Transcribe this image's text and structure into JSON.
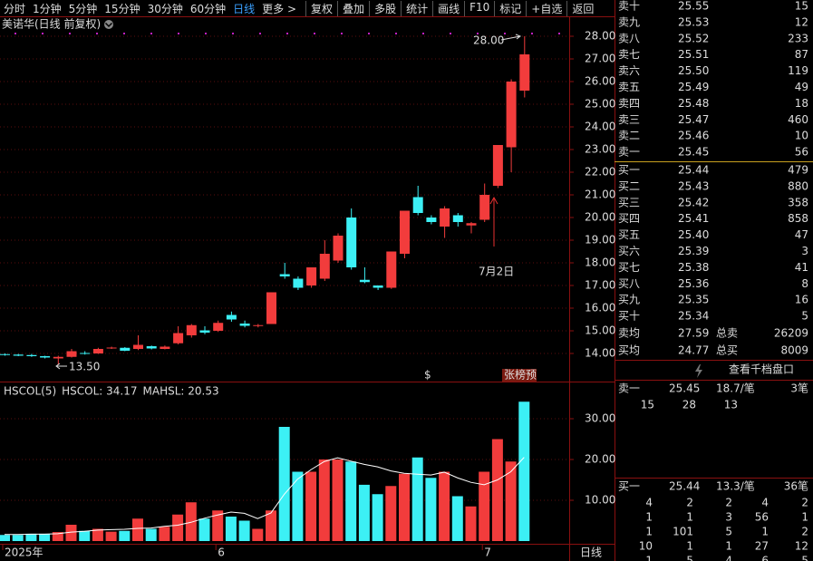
{
  "toolbar": {
    "periods": [
      "分时",
      "1分钟",
      "5分钟",
      "15分钟",
      "30分钟",
      "60分钟",
      "日线",
      "更多 >"
    ],
    "tools": [
      "复权",
      "叠加",
      "多股",
      "统计",
      "画线",
      "F10",
      "标记",
      "+自选",
      "返回"
    ]
  },
  "chart_data": [
    {
      "type": "candlestick",
      "title": "美诺华(日线 前复权)",
      "open": [
        13.97,
        13.95,
        13.93,
        13.88,
        13.78,
        13.85,
        14.02,
        14.0,
        14.22,
        14.25,
        14.2,
        14.32,
        14.2,
        14.45,
        14.8,
        15.02,
        15.0,
        15.7,
        15.32,
        15.22,
        15.3,
        17.5,
        17.3,
        17.0,
        17.3,
        18.1,
        20.0,
        17.25,
        17.0,
        16.9,
        18.4,
        20.9,
        20.0,
        19.6,
        20.1,
        19.65,
        19.9,
        21.4,
        23.1,
        25.6
      ],
      "close": [
        13.93,
        13.9,
        13.88,
        13.82,
        13.85,
        14.1,
        13.98,
        14.2,
        14.26,
        14.12,
        14.38,
        14.22,
        14.3,
        14.9,
        15.25,
        14.92,
        15.35,
        15.5,
        15.22,
        15.25,
        16.7,
        17.4,
        16.9,
        17.8,
        18.4,
        19.2,
        17.8,
        17.15,
        16.9,
        18.5,
        20.3,
        20.2,
        19.8,
        20.4,
        19.8,
        19.75,
        21.0,
        23.2,
        26.0,
        27.2
      ],
      "high": [
        14.0,
        13.98,
        13.98,
        13.9,
        13.9,
        14.2,
        14.1,
        14.25,
        14.3,
        14.28,
        14.8,
        14.35,
        14.35,
        15.2,
        15.3,
        15.2,
        15.45,
        15.85,
        15.45,
        15.3,
        16.7,
        18.0,
        17.4,
        17.8,
        19.0,
        19.3,
        20.4,
        17.8,
        17.0,
        18.5,
        20.3,
        21.4,
        20.1,
        20.5,
        20.2,
        19.8,
        21.5,
        23.2,
        26.1,
        28.0
      ],
      "low": [
        13.9,
        13.88,
        13.85,
        13.78,
        13.5,
        13.82,
        13.95,
        13.98,
        14.2,
        14.1,
        14.15,
        14.18,
        14.18,
        14.4,
        14.7,
        14.85,
        14.95,
        15.4,
        15.15,
        15.15,
        15.3,
        17.3,
        16.8,
        16.9,
        17.2,
        18.0,
        17.7,
        17.1,
        16.8,
        16.85,
        18.2,
        20.1,
        19.7,
        19.1,
        19.6,
        19.3,
        19.8,
        21.3,
        22.0,
        25.3
      ],
      "up_color": "#f23c3c",
      "down_color": "#3cf0f5",
      "ylim": [
        12.8,
        28.88
      ],
      "yticks": [
        {
          "value": 14,
          "label": "14.00"
        },
        {
          "value": 15,
          "label": "15.00"
        },
        {
          "value": 16,
          "label": "16.00"
        },
        {
          "value": 17,
          "label": "17.00"
        },
        {
          "value": 18,
          "label": "18.00"
        },
        {
          "value": 19,
          "label": "19.00"
        },
        {
          "value": 20,
          "label": "20.00"
        },
        {
          "value": 21,
          "label": "21.00"
        },
        {
          "value": 22,
          "label": "22.00"
        },
        {
          "value": 23,
          "label": "23.00"
        },
        {
          "value": 24,
          "label": "24.00"
        },
        {
          "value": 25,
          "label": "25.00"
        },
        {
          "value": 26,
          "label": "26.00"
        },
        {
          "value": 27,
          "label": "27.00"
        },
        {
          "value": 28,
          "label": "28.00"
        }
      ],
      "annotations": [
        "28.00",
        "13.50",
        "7月2日",
        "$",
        "张榜预"
      ],
      "grid": true
    },
    {
      "type": "bar",
      "legend": [
        "HSCOL(5)",
        "HSCOL: 34.17",
        "MAHSL: 20.53"
      ],
      "categories": [
        "2025年",
        null,
        null,
        null,
        null,
        null,
        null,
        null,
        null,
        null,
        null,
        null,
        null,
        null,
        null,
        null,
        "6",
        null,
        null,
        null,
        null,
        null,
        null,
        null,
        null,
        null,
        null,
        null,
        null,
        null,
        null,
        null,
        null,
        null,
        null,
        null,
        "7",
        null,
        null,
        null
      ],
      "series": [
        {
          "values": [
            1.5,
            1.5,
            1.8,
            1.8,
            2.2,
            4,
            2.5,
            3,
            2.3,
            2.5,
            5.5,
            3,
            3.5,
            6.5,
            9.5,
            5.5,
            7.5,
            6,
            5,
            3,
            7.5,
            28,
            17,
            17,
            20,
            20,
            19.5,
            13.8,
            11.5,
            13.5,
            16.5,
            20.5,
            15.5,
            17,
            11,
            8.5,
            17,
            25,
            19.5,
            34.17
          ],
          "colors": [
            "#3cf0f5",
            "#3cf0f5",
            "#3cf0f5",
            "#3cf0f5",
            "#f23c3c",
            "#f23c3c",
            "#3cf0f5",
            "#f23c3c",
            "#f23c3c",
            "#3cf0f5",
            "#f23c3c",
            "#3cf0f5",
            "#f23c3c",
            "#f23c3c",
            "#f23c3c",
            "#3cf0f5",
            "#f23c3c",
            "#3cf0f5",
            "#3cf0f5",
            "#f23c3c",
            "#f23c3c",
            "#3cf0f5",
            "#3cf0f5",
            "#f23c3c",
            "#f23c3c",
            "#f23c3c",
            "#3cf0f5",
            "#3cf0f5",
            "#3cf0f5",
            "#f23c3c",
            "#f23c3c",
            "#3cf0f5",
            "#3cf0f5",
            "#f23c3c",
            "#3cf0f5",
            "#f23c3c",
            "#f23c3c",
            "#f23c3c",
            "#f23c3c",
            "#3cf0f5"
          ]
        },
        {
          "type": "line",
          "color": "#ffffff",
          "values": [
            1.6,
            1.6,
            1.7,
            1.7,
            1.8,
            2.2,
            2.4,
            2.7,
            2.8,
            2.9,
            3.1,
            3.2,
            3.6,
            3.9,
            4.6,
            5.6,
            6.4,
            7.1,
            6.8,
            5.5,
            6.9,
            11.5,
            15.2,
            17.5,
            19.5,
            20.4,
            19.6,
            18.8,
            18.2,
            17.2,
            16.6,
            16.4,
            16.2,
            16.9,
            15.5,
            14.4,
            13.8,
            15.0,
            17.0,
            20.53
          ]
        }
      ],
      "ylim": [
        0,
        38
      ],
      "yticks": [
        {
          "value": 10,
          "label": "10.00"
        },
        {
          "value": 20,
          "label": "20.00"
        },
        {
          "value": 30,
          "label": "30.00"
        }
      ],
      "period_label": "日线",
      "grid": true
    }
  ],
  "order_book": {
    "asks": [
      {
        "label": "卖十",
        "price": "25.55",
        "volume": "15",
        "color": "#f23c3c"
      },
      {
        "label": "卖九",
        "price": "25.53",
        "volume": "12",
        "color": "#f23c3c"
      },
      {
        "label": "卖八",
        "price": "25.52",
        "volume": "233",
        "color": "#f23c3c"
      },
      {
        "label": "卖七",
        "price": "25.51",
        "volume": "87",
        "color": "#f23c3c"
      },
      {
        "label": "卖六",
        "price": "25.50",
        "volume": "119",
        "color": "#e8e8e8"
      },
      {
        "label": "卖五",
        "price": "25.49",
        "volume": "49",
        "color": "#2fd62f"
      },
      {
        "label": "卖四",
        "price": "25.48",
        "volume": "18",
        "color": "#2fd62f"
      },
      {
        "label": "卖三",
        "price": "25.47",
        "volume": "460",
        "color": "#2fd62f"
      },
      {
        "label": "卖二",
        "price": "25.46",
        "volume": "10",
        "color": "#2fd62f"
      },
      {
        "label": "卖一",
        "price": "25.45",
        "volume": "56",
        "color": "#2fd62f"
      }
    ],
    "bids": [
      {
        "label": "买一",
        "price": "25.44",
        "volume": "479",
        "color": "#2fd62f"
      },
      {
        "label": "买二",
        "price": "25.43",
        "volume": "880",
        "color": "#2fd62f"
      },
      {
        "label": "买三",
        "price": "25.42",
        "volume": "358",
        "color": "#2fd62f"
      },
      {
        "label": "买四",
        "price": "25.41",
        "volume": "858",
        "color": "#2fd62f"
      },
      {
        "label": "买五",
        "price": "25.40",
        "volume": "47",
        "color": "#2fd62f"
      },
      {
        "label": "买六",
        "price": "25.39",
        "volume": "3",
        "color": "#2fd62f"
      },
      {
        "label": "买七",
        "price": "25.38",
        "volume": "41",
        "color": "#2fd62f"
      },
      {
        "label": "买八",
        "price": "25.36",
        "volume": "8",
        "color": "#2fd62f"
      },
      {
        "label": "买九",
        "price": "25.35",
        "volume": "16",
        "color": "#2fd62f"
      },
      {
        "label": "买十",
        "price": "25.34",
        "volume": "5",
        "color": "#2fd62f"
      }
    ],
    "summary": [
      {
        "label": "卖均",
        "price": "27.59",
        "color": "#f23c3c",
        "total_label": "总卖",
        "total": "26209"
      },
      {
        "label": "买均",
        "price": "24.77",
        "color": "#2fd62f",
        "total_label": "总买",
        "total": "8009"
      }
    ],
    "button": "查看千档盘口",
    "sell1": {
      "label": "卖一",
      "price": "25.45",
      "avg": "18.7/笔",
      "count": "3笔",
      "orders": [
        [
          "15",
          "28",
          "13"
        ]
      ]
    },
    "buy1": {
      "label": "买一",
      "price": "25.44",
      "avg": "13.3/笔",
      "count": "36笔",
      "orders": [
        [
          "4",
          "2",
          "2",
          "4",
          "2"
        ],
        [
          "1",
          "1",
          "3",
          "56",
          "1"
        ],
        [
          "1",
          "101",
          "5",
          "1",
          "2"
        ],
        [
          "10",
          "1",
          "1",
          "27",
          "12"
        ],
        [
          "1",
          "5",
          "4",
          "6",
          "5"
        ]
      ]
    }
  }
}
